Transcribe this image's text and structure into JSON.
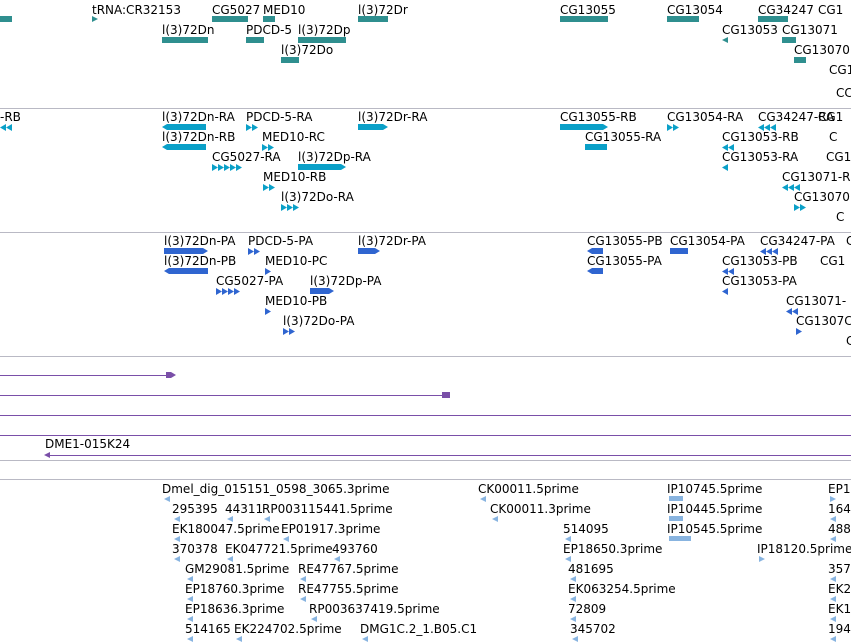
{
  "colors": {
    "gene": "#2f8f8f",
    "mrna": "#0aa0c8",
    "protein": "#2f65d0",
    "bac": "#7a4fa8",
    "est": "#88b4e0",
    "separator": "#b9b9c4"
  },
  "tracks": {
    "genes": [
      {
        "label": "tRNA:CR32153"
      },
      {
        "label": "CG5027"
      },
      {
        "label": "MED10"
      },
      {
        "label": "l(3)72Dr"
      },
      {
        "label": "CG13055"
      },
      {
        "label": "CG13054"
      },
      {
        "label": "CG34247"
      },
      {
        "label": "CG1"
      },
      {
        "label": "l(3)72Dn"
      },
      {
        "label": "PDCD-5"
      },
      {
        "label": "l(3)72Dp"
      },
      {
        "label": "CG13053"
      },
      {
        "label": "CG13071"
      },
      {
        "label": "l(3)72Do"
      },
      {
        "label": "CG13070"
      },
      {
        "label": "CG1"
      },
      {
        "label": "CC"
      }
    ],
    "transcripts": [
      {
        "label": "-RB"
      },
      {
        "label": "l(3)72Dn-RA"
      },
      {
        "label": "PDCD-5-RA"
      },
      {
        "label": "l(3)72Dr-RA"
      },
      {
        "label": "CG13055-RB"
      },
      {
        "label": "CG13054-RA"
      },
      {
        "label": "CG34247-RA"
      },
      {
        "label": "CG1"
      },
      {
        "label": "l(3)72Dn-RB"
      },
      {
        "label": "MED10-RC"
      },
      {
        "label": "CG13055-RA"
      },
      {
        "label": "CG13053-RB"
      },
      {
        "label": "C"
      },
      {
        "label": "CG5027-RA"
      },
      {
        "label": "l(3)72Dp-RA"
      },
      {
        "label": "CG13053-RA"
      },
      {
        "label": "CG1"
      },
      {
        "label": "MED10-RB"
      },
      {
        "label": "CG13071-R"
      },
      {
        "label": "l(3)72Do-RA"
      },
      {
        "label": "CG13070"
      },
      {
        "label": "C"
      }
    ],
    "proteins": [
      {
        "label": "l(3)72Dn-PA"
      },
      {
        "label": "PDCD-5-PA"
      },
      {
        "label": "l(3)72Dr-PA"
      },
      {
        "label": "CG13055-PB"
      },
      {
        "label": "CG13054-PA"
      },
      {
        "label": "CG34247-PA"
      },
      {
        "label": "C"
      },
      {
        "label": "l(3)72Dn-PB"
      },
      {
        "label": "MED10-PC"
      },
      {
        "label": "CG13055-PA"
      },
      {
        "label": "CG13053-PB"
      },
      {
        "label": "CG1"
      },
      {
        "label": "CG5027-PA"
      },
      {
        "label": "l(3)72Dp-PA"
      },
      {
        "label": "CG13053-PA"
      },
      {
        "label": "MED10-PB"
      },
      {
        "label": "CG13071-"
      },
      {
        "label": "l(3)72Do-PA"
      },
      {
        "label": "CG1307C"
      },
      {
        "label": "C"
      }
    ],
    "clones": [
      {
        "label": "DME1-015K24"
      }
    ],
    "ests": [
      {
        "label": "Dmel_dig_015151_0598_3065.3prime"
      },
      {
        "label": "CK00011.5prime"
      },
      {
        "label": "IP10745.5prime"
      },
      {
        "label": "EP1"
      },
      {
        "label": "295395"
      },
      {
        "label": "44311"
      },
      {
        "label": "RP003115441.5prime"
      },
      {
        "label": "CK00011.3prime"
      },
      {
        "label": "IP10445.5prime"
      },
      {
        "label": "164"
      },
      {
        "label": "EK180047.5prime"
      },
      {
        "label": "EP01917.3prime"
      },
      {
        "label": "514095"
      },
      {
        "label": "IP10545.5prime"
      },
      {
        "label": "488"
      },
      {
        "label": "370378"
      },
      {
        "label": "EK047721.5prime"
      },
      {
        "label": "493760"
      },
      {
        "label": "EP18650.3prime"
      },
      {
        "label": "IP18120.5prime"
      },
      {
        "label": "GM29081.5prime"
      },
      {
        "label": "RE47767.5prime"
      },
      {
        "label": "481695"
      },
      {
        "label": "357"
      },
      {
        "label": "EP18760.3prime"
      },
      {
        "label": "RE47755.5prime"
      },
      {
        "label": "EK063254.5prime"
      },
      {
        "label": "EK2"
      },
      {
        "label": "EP18636.3prime"
      },
      {
        "label": "RP003637419.5prime"
      },
      {
        "label": "72809"
      },
      {
        "label": "EK1"
      },
      {
        "label": "514165"
      },
      {
        "label": "EK224702.5prime"
      },
      {
        "label": "DMG1C.2_1.B05.C1"
      },
      {
        "label": "345702"
      },
      {
        "label": "194"
      }
    ]
  }
}
